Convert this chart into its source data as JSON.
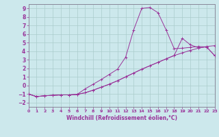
{
  "xlabel": "Windchill (Refroidissement éolien,°C)",
  "xlim": [
    0,
    23
  ],
  "ylim": [
    -2.5,
    9.5
  ],
  "xticks": [
    0,
    1,
    2,
    3,
    4,
    5,
    6,
    7,
    8,
    9,
    10,
    11,
    12,
    13,
    14,
    15,
    16,
    17,
    18,
    19,
    20,
    21,
    22,
    23
  ],
  "yticks": [
    -2,
    -1,
    0,
    1,
    2,
    3,
    4,
    5,
    6,
    7,
    8,
    9
  ],
  "bg_color": "#cce8ec",
  "grid_color": "#aacccc",
  "line_color": "#993399",
  "line1_x": [
    0,
    1,
    2,
    3,
    4,
    5,
    6,
    7,
    8,
    9,
    10,
    11,
    12,
    13,
    14,
    15,
    16,
    17,
    18,
    19,
    20,
    21,
    22,
    23
  ],
  "line1_y": [
    -1.0,
    -1.3,
    -1.2,
    -1.15,
    -1.1,
    -1.1,
    -1.05,
    -0.85,
    -0.55,
    -0.2,
    0.15,
    0.55,
    1.0,
    1.45,
    1.9,
    2.3,
    2.7,
    3.1,
    3.5,
    3.8,
    4.1,
    4.35,
    4.55,
    4.65
  ],
  "line2_x": [
    0,
    1,
    2,
    3,
    4,
    5,
    6,
    7,
    8,
    9,
    10,
    11,
    12,
    13,
    14,
    15,
    16,
    17,
    18,
    19,
    20,
    21,
    22,
    23
  ],
  "line2_y": [
    -1.0,
    -1.3,
    -1.2,
    -1.15,
    -1.1,
    -1.1,
    -1.05,
    -0.4,
    0.15,
    0.7,
    1.3,
    1.9,
    3.3,
    6.5,
    9.0,
    9.1,
    8.5,
    6.5,
    4.3,
    4.35,
    4.45,
    4.55,
    4.5,
    3.5
  ],
  "line3_x": [
    0,
    1,
    2,
    3,
    4,
    5,
    6,
    7,
    8,
    9,
    10,
    11,
    12,
    13,
    14,
    15,
    16,
    17,
    18,
    19,
    20,
    21,
    22,
    23
  ],
  "line3_y": [
    -1.0,
    -1.3,
    -1.2,
    -1.15,
    -1.1,
    -1.1,
    -1.05,
    -0.85,
    -0.55,
    -0.2,
    0.15,
    0.55,
    1.0,
    1.45,
    1.9,
    2.3,
    2.7,
    3.1,
    3.5,
    5.5,
    4.75,
    4.4,
    4.5,
    3.5
  ]
}
